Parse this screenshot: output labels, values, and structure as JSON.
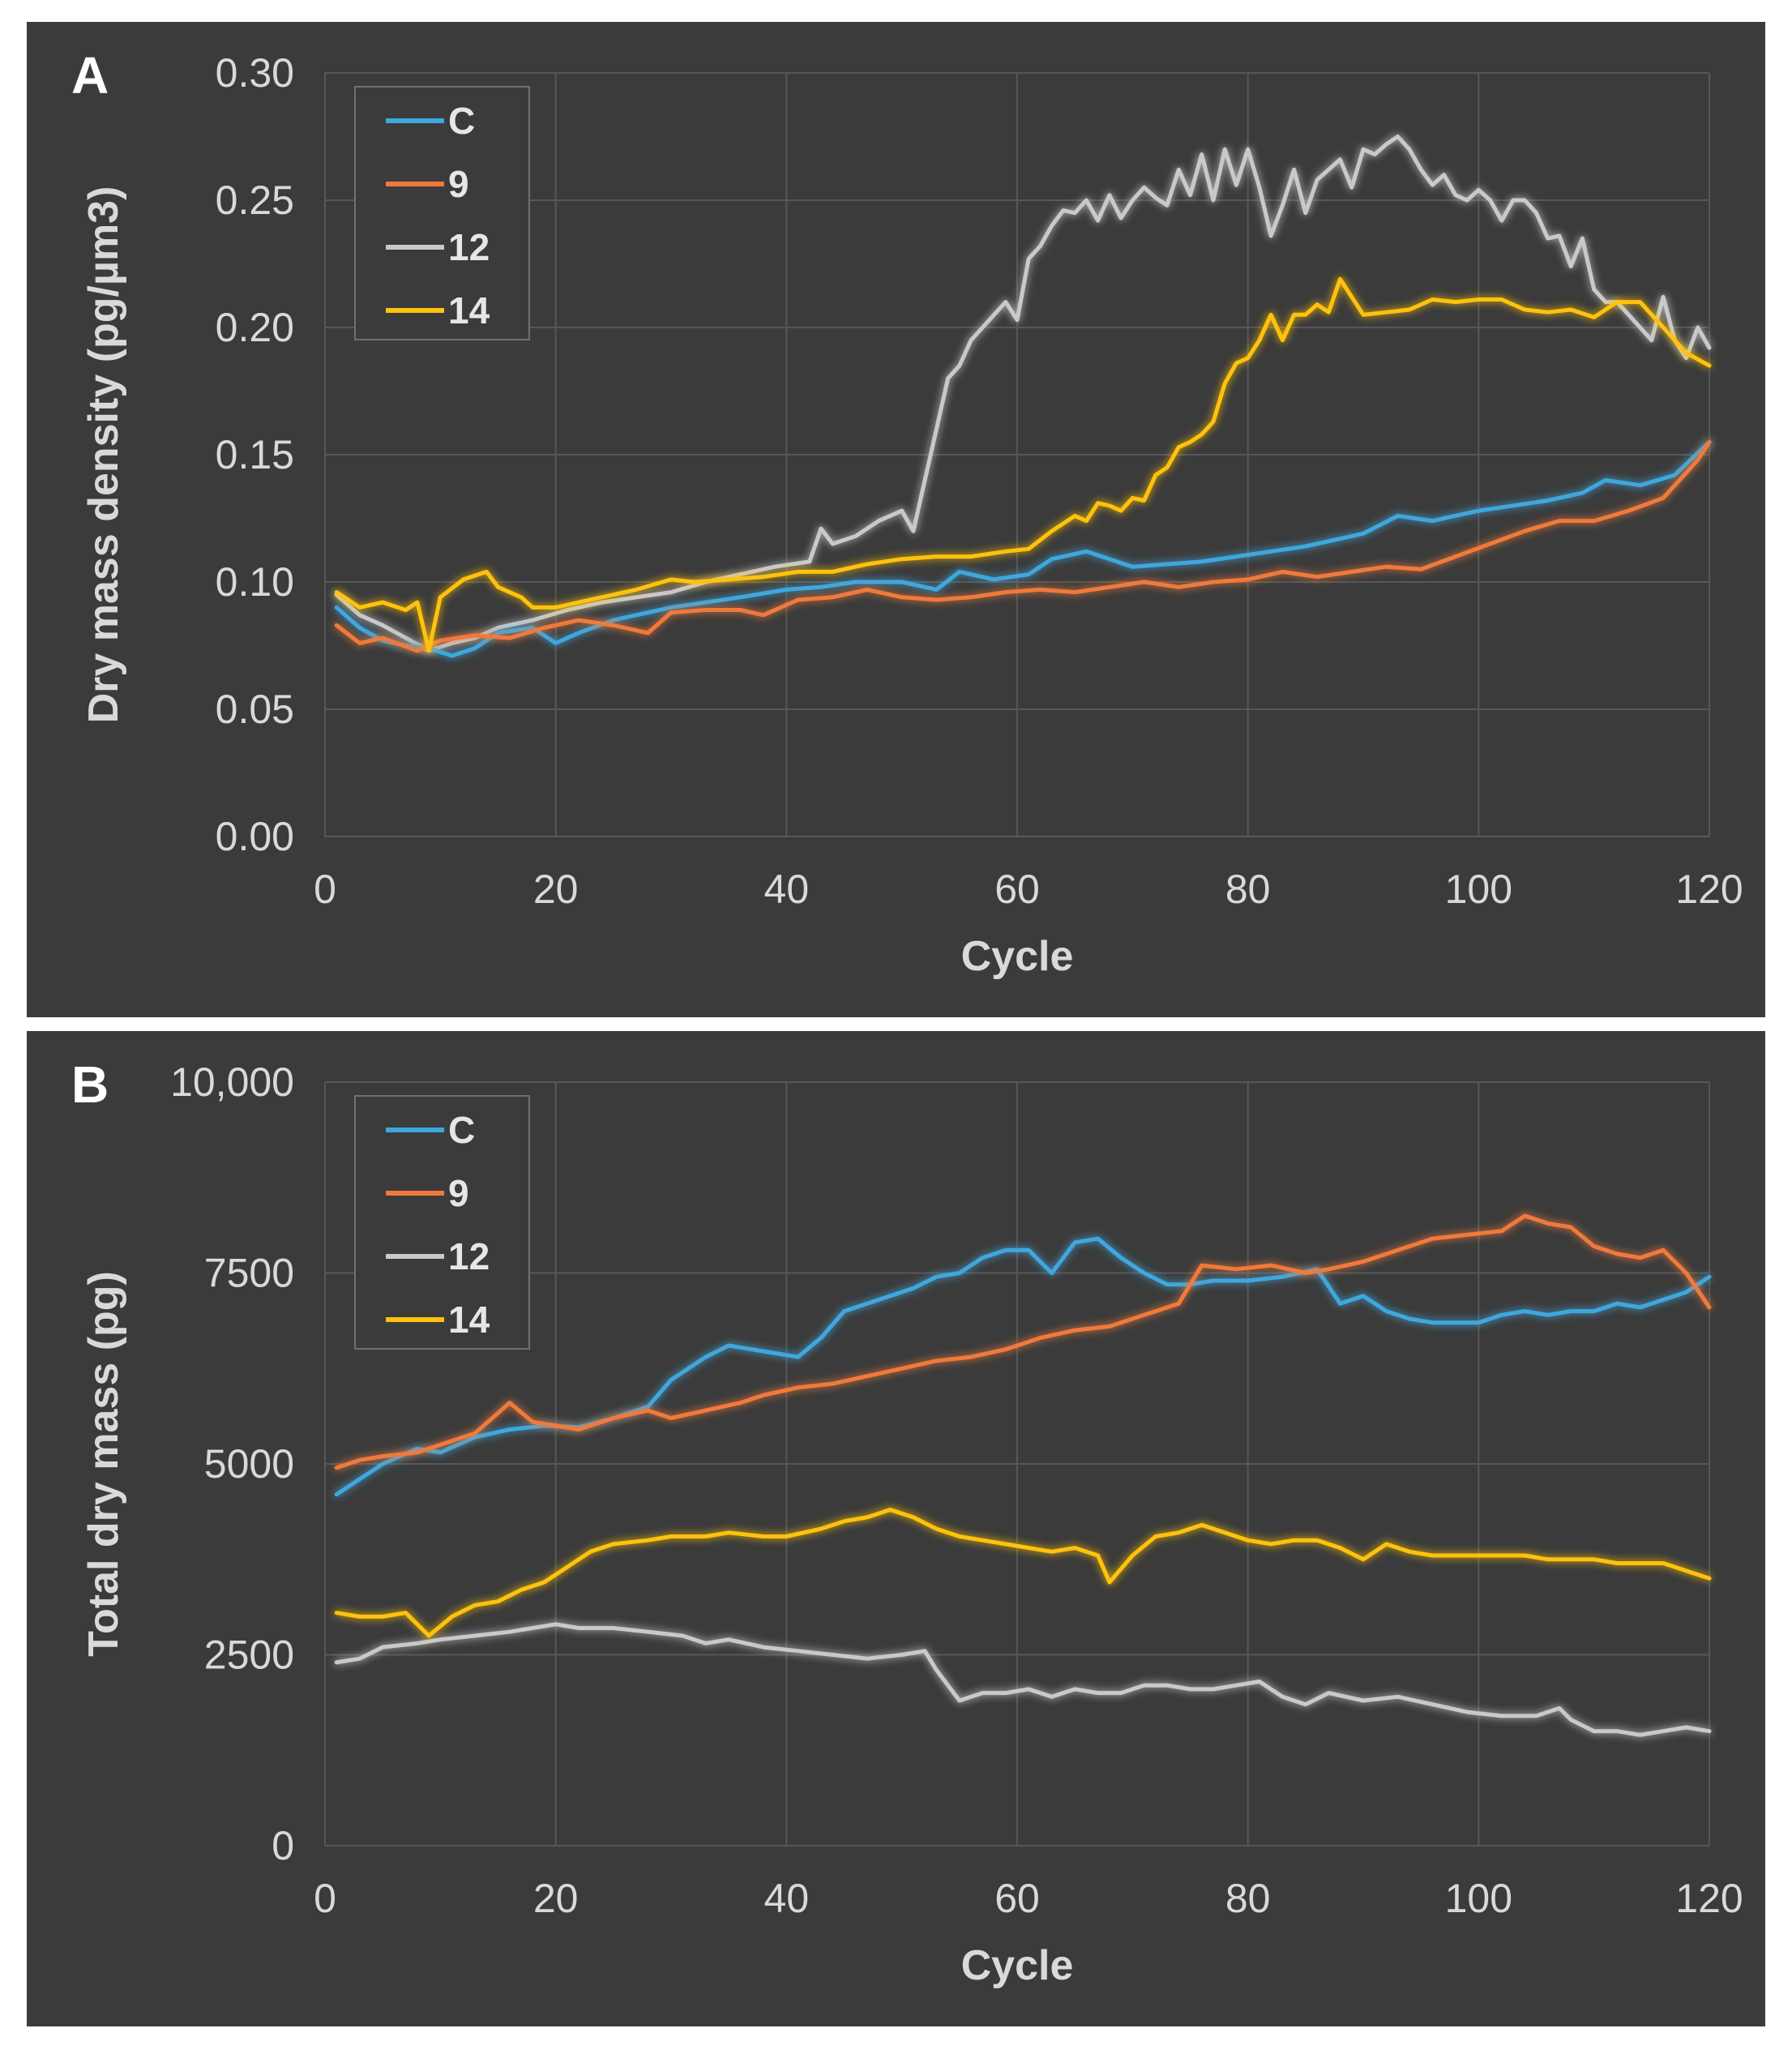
{
  "colors": {
    "C": "#3fa7dd",
    "9": "#f07a3a",
    "12": "#c9c9c9",
    "14": "#ffc20e",
    "background": "#3b3b3b",
    "grid": "#575757",
    "text": "#d9d9d9"
  },
  "chart_data": [
    {
      "panel": "A",
      "type": "line",
      "title": "",
      "xlabel": "Cycle",
      "ylabel": "Dry mass density (pg/µm3)",
      "xlim": [
        0,
        120
      ],
      "ylim": [
        0,
        0.3
      ],
      "xticks": [
        0,
        20,
        40,
        60,
        80,
        100,
        120
      ],
      "yticks": [
        0,
        0.05,
        0.1,
        0.15,
        0.2,
        0.25,
        0.3
      ],
      "xtick_labels": [
        "0",
        "20",
        "40",
        "60",
        "80",
        "100",
        "120"
      ],
      "ytick_labels": [
        "0.00",
        "0.05",
        "0.10",
        "0.15",
        "0.20",
        "0.25",
        "0.30"
      ],
      "grid": true,
      "legend": "top-left",
      "series": [
        {
          "name": "C",
          "x": [
            1,
            3,
            5,
            7,
            9,
            11,
            13,
            15,
            18,
            20,
            22,
            25,
            28,
            30,
            33,
            36,
            40,
            43,
            46,
            50,
            53,
            55,
            58,
            61,
            63,
            66,
            68,
            70,
            73,
            76,
            79,
            82,
            85,
            88,
            90,
            93,
            96,
            100,
            103,
            106,
            109,
            111,
            114,
            117,
            120
          ],
          "values": [
            0.09,
            0.082,
            0.077,
            0.075,
            0.074,
            0.071,
            0.074,
            0.08,
            0.082,
            0.076,
            0.08,
            0.085,
            0.088,
            0.09,
            0.092,
            0.094,
            0.097,
            0.098,
            0.1,
            0.1,
            0.097,
            0.104,
            0.101,
            0.103,
            0.109,
            0.112,
            0.109,
            0.106,
            0.107,
            0.108,
            0.11,
            0.112,
            0.114,
            0.117,
            0.119,
            0.126,
            0.124,
            0.128,
            0.13,
            0.132,
            0.135,
            0.14,
            0.138,
            0.142,
            0.155
          ]
        },
        {
          "name": "9",
          "x": [
            1,
            3,
            5,
            8,
            10,
            13,
            16,
            19,
            22,
            25,
            28,
            30,
            33,
            36,
            38,
            41,
            44,
            47,
            50,
            53,
            56,
            59,
            62,
            65,
            68,
            71,
            74,
            77,
            80,
            83,
            86,
            89,
            92,
            95,
            98,
            101,
            104,
            107,
            110,
            113,
            116,
            119,
            120
          ],
          "values": [
            0.083,
            0.076,
            0.078,
            0.073,
            0.077,
            0.079,
            0.078,
            0.082,
            0.085,
            0.083,
            0.08,
            0.088,
            0.089,
            0.089,
            0.087,
            0.093,
            0.094,
            0.097,
            0.094,
            0.093,
            0.094,
            0.096,
            0.097,
            0.096,
            0.098,
            0.1,
            0.098,
            0.1,
            0.101,
            0.104,
            0.102,
            0.104,
            0.106,
            0.105,
            0.11,
            0.115,
            0.12,
            0.124,
            0.124,
            0.128,
            0.133,
            0.148,
            0.155
          ]
        },
        {
          "name": "12",
          "x": [
            1,
            3,
            5,
            7,
            9,
            11,
            13,
            15,
            18,
            21,
            24,
            27,
            30,
            33,
            36,
            39,
            42,
            43,
            44,
            46,
            48,
            50,
            51,
            52,
            53,
            54,
            55,
            56,
            57,
            58,
            59,
            60,
            61,
            62,
            63,
            64,
            65,
            66,
            67,
            68,
            69,
            70,
            71,
            72,
            73,
            74,
            75,
            76,
            77,
            78,
            79,
            80,
            81,
            82,
            83,
            84,
            85,
            86,
            87,
            88,
            89,
            90,
            91,
            92,
            93,
            94,
            95,
            96,
            97,
            98,
            99,
            100,
            101,
            102,
            103,
            104,
            105,
            106,
            107,
            108,
            109,
            110,
            111,
            112,
            113,
            114,
            115,
            116,
            117,
            118,
            119,
            120
          ],
          "values": [
            0.095,
            0.087,
            0.083,
            0.078,
            0.073,
            0.076,
            0.078,
            0.082,
            0.085,
            0.089,
            0.092,
            0.094,
            0.096,
            0.1,
            0.103,
            0.106,
            0.108,
            0.121,
            0.115,
            0.118,
            0.124,
            0.128,
            0.12,
            0.14,
            0.16,
            0.18,
            0.185,
            0.195,
            0.2,
            0.205,
            0.21,
            0.203,
            0.227,
            0.232,
            0.24,
            0.246,
            0.245,
            0.25,
            0.242,
            0.252,
            0.243,
            0.25,
            0.255,
            0.251,
            0.248,
            0.262,
            0.252,
            0.268,
            0.25,
            0.27,
            0.256,
            0.27,
            0.255,
            0.236,
            0.248,
            0.262,
            0.245,
            0.258,
            0.262,
            0.266,
            0.255,
            0.27,
            0.268,
            0.272,
            0.275,
            0.27,
            0.262,
            0.256,
            0.26,
            0.252,
            0.25,
            0.254,
            0.25,
            0.242,
            0.25,
            0.25,
            0.245,
            0.235,
            0.236,
            0.224,
            0.235,
            0.215,
            0.21,
            0.21,
            0.205,
            0.2,
            0.195,
            0.212,
            0.195,
            0.188,
            0.2,
            0.192
          ]
        },
        {
          "name": "14",
          "x": [
            1,
            3,
            5,
            7,
            8,
            9,
            10,
            12,
            14,
            15,
            17,
            18,
            20,
            22,
            24,
            27,
            30,
            32,
            35,
            38,
            41,
            44,
            47,
            50,
            53,
            56,
            59,
            61,
            63,
            65,
            66,
            67,
            68,
            69,
            70,
            71,
            72,
            73,
            74,
            75,
            76,
            77,
            78,
            79,
            80,
            81,
            82,
            83,
            84,
            85,
            86,
            87,
            88,
            90,
            92,
            94,
            96,
            98,
            100,
            102,
            104,
            106,
            108,
            110,
            112,
            114,
            116,
            118,
            120
          ],
          "values": [
            0.096,
            0.09,
            0.092,
            0.089,
            0.092,
            0.073,
            0.094,
            0.101,
            0.104,
            0.098,
            0.094,
            0.09,
            0.09,
            0.092,
            0.094,
            0.097,
            0.101,
            0.1,
            0.101,
            0.102,
            0.104,
            0.104,
            0.107,
            0.109,
            0.11,
            0.11,
            0.112,
            0.113,
            0.12,
            0.126,
            0.124,
            0.131,
            0.13,
            0.128,
            0.133,
            0.132,
            0.142,
            0.145,
            0.153,
            0.155,
            0.158,
            0.163,
            0.178,
            0.186,
            0.188,
            0.195,
            0.205,
            0.195,
            0.205,
            0.205,
            0.209,
            0.206,
            0.219,
            0.205,
            0.206,
            0.207,
            0.211,
            0.21,
            0.211,
            0.211,
            0.207,
            0.206,
            0.207,
            0.204,
            0.21,
            0.21,
            0.2,
            0.19,
            0.185
          ]
        }
      ]
    },
    {
      "panel": "B",
      "type": "line",
      "title": "",
      "xlabel": "Cycle",
      "ylabel": "Total dry mass (pg)",
      "xlim": [
        0,
        120
      ],
      "ylim": [
        0,
        10000
      ],
      "xticks": [
        0,
        20,
        40,
        60,
        80,
        100,
        120
      ],
      "yticks": [
        0,
        2500,
        5000,
        7500,
        10000
      ],
      "xtick_labels": [
        "0",
        "20",
        "40",
        "60",
        "80",
        "100",
        "120"
      ],
      "ytick_labels": [
        "0",
        "2500",
        "5000",
        "7500",
        "10,000"
      ],
      "grid": true,
      "legend": "top-left",
      "series": [
        {
          "name": "C",
          "x": [
            1,
            3,
            5,
            8,
            10,
            13,
            16,
            19,
            22,
            25,
            28,
            30,
            33,
            35,
            37,
            39,
            41,
            43,
            45,
            47,
            49,
            51,
            53,
            55,
            57,
            59,
            61,
            63,
            65,
            67,
            69,
            71,
            73,
            75,
            77,
            80,
            83,
            86,
            88,
            90,
            92,
            94,
            96,
            98,
            100,
            102,
            104,
            106,
            108,
            110,
            112,
            114,
            116,
            118,
            120
          ],
          "values": [
            4600,
            4800,
            5000,
            5200,
            5150,
            5350,
            5450,
            5500,
            5480,
            5600,
            5750,
            6100,
            6400,
            6550,
            6500,
            6450,
            6400,
            6650,
            7000,
            7100,
            7200,
            7300,
            7450,
            7500,
            7700,
            7800,
            7800,
            7500,
            7900,
            7950,
            7700,
            7500,
            7350,
            7350,
            7400,
            7400,
            7450,
            7550,
            7100,
            7200,
            7000,
            6900,
            6850,
            6850,
            6850,
            6950,
            7000,
            6950,
            7000,
            7000,
            7100,
            7050,
            7150,
            7250,
            7450
          ]
        },
        {
          "name": "9",
          "x": [
            1,
            3,
            5,
            8,
            10,
            13,
            16,
            18,
            20,
            22,
            25,
            28,
            30,
            33,
            36,
            38,
            41,
            44,
            47,
            50,
            53,
            56,
            59,
            62,
            65,
            68,
            71,
            74,
            76,
            79,
            82,
            85,
            87,
            90,
            93,
            96,
            99,
            102,
            104,
            106,
            108,
            110,
            112,
            114,
            116,
            118,
            120
          ],
          "values": [
            4950,
            5050,
            5100,
            5150,
            5250,
            5400,
            5800,
            5550,
            5500,
            5450,
            5600,
            5700,
            5600,
            5700,
            5800,
            5900,
            6000,
            6050,
            6150,
            6250,
            6350,
            6400,
            6500,
            6650,
            6750,
            6800,
            6950,
            7100,
            7600,
            7550,
            7600,
            7500,
            7550,
            7650,
            7800,
            7950,
            8000,
            8050,
            8250,
            8150,
            8100,
            7850,
            7750,
            7700,
            7800,
            7500,
            7050
          ]
        },
        {
          "name": "12",
          "x": [
            1,
            3,
            5,
            8,
            10,
            13,
            16,
            18,
            20,
            22,
            25,
            28,
            31,
            33,
            35,
            38,
            41,
            44,
            47,
            50,
            52,
            53,
            55,
            57,
            59,
            61,
            63,
            65,
            67,
            69,
            71,
            73,
            75,
            77,
            79,
            81,
            83,
            85,
            87,
            90,
            93,
            96,
            99,
            102,
            105,
            107,
            108,
            110,
            112,
            114,
            116,
            118,
            120
          ],
          "values": [
            2400,
            2450,
            2600,
            2650,
            2700,
            2750,
            2800,
            2850,
            2900,
            2850,
            2850,
            2800,
            2750,
            2650,
            2700,
            2600,
            2550,
            2500,
            2450,
            2500,
            2550,
            2300,
            1900,
            2000,
            2000,
            2050,
            1950,
            2050,
            2000,
            2000,
            2100,
            2100,
            2050,
            2050,
            2100,
            2150,
            1950,
            1850,
            2000,
            1900,
            1950,
            1850,
            1750,
            1700,
            1700,
            1800,
            1650,
            1500,
            1500,
            1450,
            1500,
            1550,
            1500
          ]
        },
        {
          "name": "14",
          "x": [
            1,
            3,
            5,
            7,
            9,
            11,
            13,
            15,
            17,
            19,
            21,
            23,
            25,
            28,
            30,
            33,
            35,
            38,
            40,
            43,
            45,
            47,
            49,
            51,
            53,
            55,
            57,
            59,
            61,
            63,
            65,
            67,
            68,
            70,
            72,
            74,
            76,
            78,
            80,
            82,
            84,
            86,
            88,
            90,
            92,
            94,
            96,
            98,
            100,
            102,
            104,
            106,
            108,
            110,
            112,
            114,
            116,
            118,
            120
          ],
          "values": [
            3050,
            3000,
            3000,
            3050,
            2750,
            3000,
            3150,
            3200,
            3350,
            3450,
            3650,
            3850,
            3950,
            4000,
            4050,
            4050,
            4100,
            4050,
            4050,
            4150,
            4250,
            4300,
            4400,
            4300,
            4150,
            4050,
            4000,
            3950,
            3900,
            3850,
            3900,
            3800,
            3450,
            3800,
            4050,
            4100,
            4200,
            4100,
            4000,
            3950,
            4000,
            4000,
            3900,
            3750,
            3950,
            3850,
            3800,
            3800,
            3800,
            3800,
            3800,
            3750,
            3750,
            3750,
            3700,
            3700,
            3700,
            3600,
            3500
          ]
        }
      ]
    }
  ]
}
